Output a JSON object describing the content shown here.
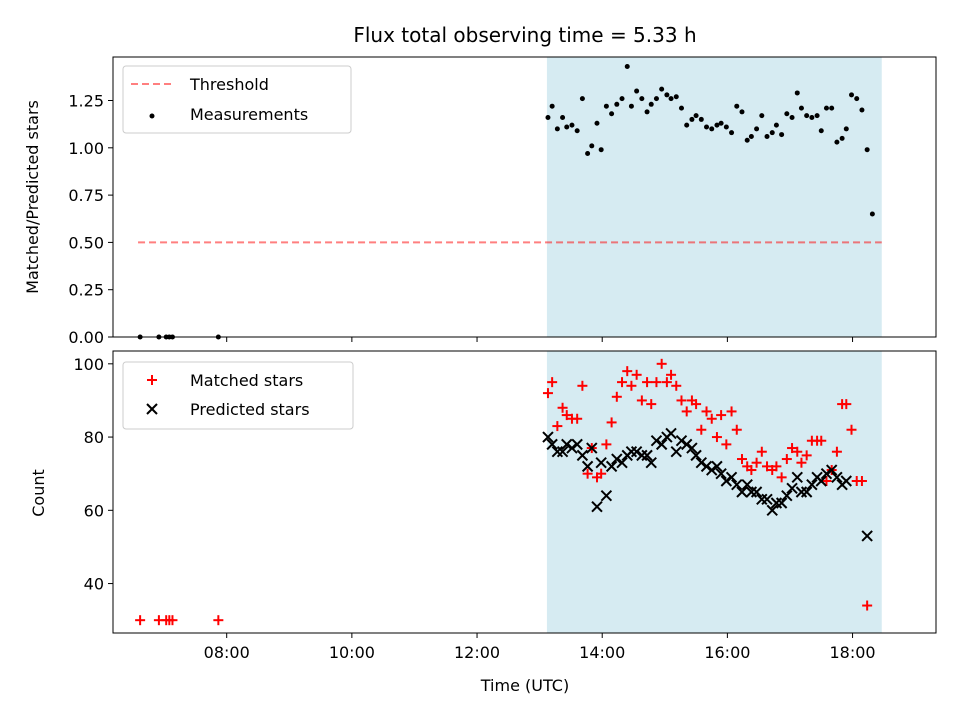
{
  "chart_data": [
    {
      "type": "scatter",
      "title": "Flux total observing time = 5.33 h",
      "ylabel": "Matched/Predicted stars",
      "xlabel": "",
      "xlim": [
        "06:11",
        "19:20"
      ],
      "ylim": [
        0,
        1.48
      ],
      "yticks": [
        0.0,
        0.25,
        0.5,
        0.75,
        1.0,
        1.25
      ],
      "ytick_labels": [
        "0.00",
        "0.25",
        "0.50",
        "0.75",
        "1.00",
        "1.25"
      ],
      "legend_position": "top-left",
      "shaded_region": {
        "start": "13:07",
        "end": "18:28",
        "color": "#add8e6"
      },
      "threshold": {
        "name": "Threshold",
        "value": 0.5,
        "x_start": "06:35",
        "x_end": "18:28",
        "color": "#ff0000",
        "style": "dashed"
      },
      "series": [
        {
          "name": "Measurements",
          "color": "#000000",
          "marker": "dot",
          "points": [
            [
              "06:37",
              0
            ],
            [
              "06:55",
              0
            ],
            [
              "07:02",
              0
            ],
            [
              "07:05",
              0
            ],
            [
              "07:08",
              0
            ],
            [
              "07:52",
              0
            ],
            [
              "13:08",
              1.16
            ],
            [
              "13:12",
              1.22
            ],
            [
              "13:17",
              1.1
            ],
            [
              "13:22",
              1.16
            ],
            [
              "13:26",
              1.11
            ],
            [
              "13:31",
              1.12
            ],
            [
              "13:36",
              1.09
            ],
            [
              "13:41",
              1.26
            ],
            [
              "13:46",
              0.97
            ],
            [
              "13:50",
              1.01
            ],
            [
              "13:55",
              1.13
            ],
            [
              "13:59",
              0.99
            ],
            [
              "14:04",
              1.22
            ],
            [
              "14:09",
              1.18
            ],
            [
              "14:14",
              1.23
            ],
            [
              "14:19",
              1.26
            ],
            [
              "14:24",
              1.43
            ],
            [
              "14:28",
              1.22
            ],
            [
              "14:33",
              1.3
            ],
            [
              "14:38",
              1.26
            ],
            [
              "14:43",
              1.19
            ],
            [
              "14:47",
              1.23
            ],
            [
              "14:52",
              1.26
            ],
            [
              "14:57",
              1.31
            ],
            [
              "15:02",
              1.28
            ],
            [
              "15:06",
              1.26
            ],
            [
              "15:11",
              1.27
            ],
            [
              "15:16",
              1.21
            ],
            [
              "15:21",
              1.12
            ],
            [
              "15:26",
              1.15
            ],
            [
              "15:30",
              1.17
            ],
            [
              "15:35",
              1.15
            ],
            [
              "15:40",
              1.11
            ],
            [
              "15:45",
              1.1
            ],
            [
              "15:50",
              1.12
            ],
            [
              "15:54",
              1.13
            ],
            [
              "15:59",
              1.11
            ],
            [
              "16:04",
              1.08
            ],
            [
              "16:09",
              1.22
            ],
            [
              "16:14",
              1.19
            ],
            [
              "16:19",
              1.04
            ],
            [
              "16:23",
              1.06
            ],
            [
              "16:28",
              1.1
            ],
            [
              "16:33",
              1.17
            ],
            [
              "16:38",
              1.06
            ],
            [
              "16:43",
              1.08
            ],
            [
              "16:47",
              1.12
            ],
            [
              "16:52",
              1.07
            ],
            [
              "16:57",
              1.18
            ],
            [
              "17:02",
              1.16
            ],
            [
              "17:07",
              1.29
            ],
            [
              "17:11",
              1.21
            ],
            [
              "17:16",
              1.17
            ],
            [
              "17:21",
              1.16
            ],
            [
              "17:26",
              1.17
            ],
            [
              "17:30",
              1.09
            ],
            [
              "17:35",
              1.21
            ],
            [
              "17:40",
              1.21
            ],
            [
              "17:45",
              1.03
            ],
            [
              "17:50",
              1.05
            ],
            [
              "17:54",
              1.1
            ],
            [
              "17:59",
              1.28
            ],
            [
              "18:04",
              1.26
            ],
            [
              "18:09",
              1.2
            ],
            [
              "18:14",
              0.99
            ],
            [
              "18:19",
              0.65
            ]
          ]
        }
      ]
    },
    {
      "type": "scatter",
      "title": "",
      "ylabel": "Count",
      "xlabel": "Time (UTC)",
      "xlim": [
        "06:11",
        "19:20"
      ],
      "ylim": [
        26.5,
        103.5
      ],
      "yticks": [
        40,
        60,
        80,
        100
      ],
      "ytick_labels": [
        "40",
        "60",
        "80",
        "100"
      ],
      "xticks": [
        "08:00",
        "10:00",
        "12:00",
        "14:00",
        "16:00",
        "18:00"
      ],
      "xtick_labels": [
        "08:00",
        "10:00",
        "12:00",
        "14:00",
        "16:00",
        "18:00"
      ],
      "legend_position": "top-left",
      "shaded_region": {
        "start": "13:07",
        "end": "18:28",
        "color": "#add8e6"
      },
      "series": [
        {
          "name": "Matched stars",
          "color": "#ff0000",
          "marker": "plus",
          "points": [
            [
              "06:37",
              30
            ],
            [
              "06:55",
              30
            ],
            [
              "07:02",
              30
            ],
            [
              "07:05",
              30
            ],
            [
              "07:08",
              30
            ],
            [
              "07:52",
              30
            ],
            [
              "13:08",
              92
            ],
            [
              "13:12",
              95
            ],
            [
              "13:17",
              83
            ],
            [
              "13:22",
              88
            ],
            [
              "13:26",
              86
            ],
            [
              "13:31",
              85
            ],
            [
              "13:36",
              85
            ],
            [
              "13:41",
              94
            ],
            [
              "13:46",
              70
            ],
            [
              "13:50",
              77
            ],
            [
              "13:55",
              69
            ],
            [
              "13:59",
              70
            ],
            [
              "14:04",
              78
            ],
            [
              "14:09",
              84
            ],
            [
              "14:14",
              91
            ],
            [
              "14:19",
              95
            ],
            [
              "14:24",
              98
            ],
            [
              "14:28",
              94
            ],
            [
              "14:33",
              97
            ],
            [
              "14:38",
              90
            ],
            [
              "14:43",
              95
            ],
            [
              "14:47",
              89
            ],
            [
              "14:52",
              95
            ],
            [
              "14:57",
              100
            ],
            [
              "15:02",
              95
            ],
            [
              "15:06",
              97
            ],
            [
              "15:11",
              94
            ],
            [
              "15:16",
              90
            ],
            [
              "15:21",
              87
            ],
            [
              "15:26",
              90
            ],
            [
              "15:30",
              89
            ],
            [
              "15:35",
              82
            ],
            [
              "15:40",
              87
            ],
            [
              "15:45",
              85
            ],
            [
              "15:50",
              80
            ],
            [
              "15:54",
              86
            ],
            [
              "15:59",
              78
            ],
            [
              "16:04",
              87
            ],
            [
              "16:09",
              82
            ],
            [
              "16:14",
              74
            ],
            [
              "16:19",
              72
            ],
            [
              "16:23",
              71
            ],
            [
              "16:28",
              73
            ],
            [
              "16:33",
              76
            ],
            [
              "16:38",
              72
            ],
            [
              "16:43",
              71
            ],
            [
              "16:47",
              72
            ],
            [
              "16:52",
              69
            ],
            [
              "16:57",
              74
            ],
            [
              "17:02",
              77
            ],
            [
              "17:07",
              76
            ],
            [
              "17:11",
              73
            ],
            [
              "17:16",
              75
            ],
            [
              "17:21",
              79
            ],
            [
              "17:26",
              79
            ],
            [
              "17:30",
              79
            ],
            [
              "17:35",
              68
            ],
            [
              "17:40",
              71
            ],
            [
              "17:45",
              76
            ],
            [
              "17:50",
              89
            ],
            [
              "17:54",
              89
            ],
            [
              "17:59",
              82
            ],
            [
              "18:04",
              68
            ],
            [
              "18:09",
              68
            ],
            [
              "18:14",
              34
            ]
          ]
        },
        {
          "name": "Predicted stars",
          "color": "#000000",
          "marker": "x",
          "points": [
            [
              "13:08",
              80
            ],
            [
              "13:12",
              78
            ],
            [
              "13:17",
              76
            ],
            [
              "13:22",
              76
            ],
            [
              "13:26",
              78
            ],
            [
              "13:31",
              77
            ],
            [
              "13:36",
              78
            ],
            [
              "13:41",
              75
            ],
            [
              "13:46",
              72
            ],
            [
              "13:50",
              77
            ],
            [
              "13:55",
              61
            ],
            [
              "13:59",
              73
            ],
            [
              "14:04",
              64
            ],
            [
              "14:09",
              72
            ],
            [
              "14:14",
              74
            ],
            [
              "14:19",
              73
            ],
            [
              "14:24",
              75
            ],
            [
              "14:28",
              76
            ],
            [
              "14:33",
              76
            ],
            [
              "14:38",
              75
            ],
            [
              "14:43",
              75
            ],
            [
              "14:47",
              73
            ],
            [
              "14:52",
              79
            ],
            [
              "14:57",
              78
            ],
            [
              "15:02",
              80
            ],
            [
              "15:06",
              81
            ],
            [
              "15:11",
              76
            ],
            [
              "15:16",
              79
            ],
            [
              "15:21",
              78
            ],
            [
              "15:26",
              77
            ],
            [
              "15:30",
              75
            ],
            [
              "15:35",
              73
            ],
            [
              "15:40",
              72
            ],
            [
              "15:45",
              71
            ],
            [
              "15:50",
              72
            ],
            [
              "15:54",
              70
            ],
            [
              "15:59",
              68
            ],
            [
              "16:04",
              69
            ],
            [
              "16:09",
              67
            ],
            [
              "16:14",
              65
            ],
            [
              "16:19",
              67
            ],
            [
              "16:23",
              65
            ],
            [
              "16:28",
              65
            ],
            [
              "16:33",
              63
            ],
            [
              "16:38",
              63
            ],
            [
              "16:43",
              60
            ],
            [
              "16:47",
              62
            ],
            [
              "16:52",
              62
            ],
            [
              "16:57",
              64
            ],
            [
              "17:02",
              66
            ],
            [
              "17:07",
              69
            ],
            [
              "17:11",
              65
            ],
            [
              "17:16",
              65
            ],
            [
              "17:21",
              67
            ],
            [
              "17:26",
              69
            ],
            [
              "17:30",
              68
            ],
            [
              "17:35",
              70
            ],
            [
              "17:40",
              71
            ],
            [
              "17:45",
              69
            ],
            [
              "17:50",
              67
            ],
            [
              "17:54",
              68
            ],
            [
              "18:14",
              53
            ]
          ]
        }
      ]
    }
  ]
}
